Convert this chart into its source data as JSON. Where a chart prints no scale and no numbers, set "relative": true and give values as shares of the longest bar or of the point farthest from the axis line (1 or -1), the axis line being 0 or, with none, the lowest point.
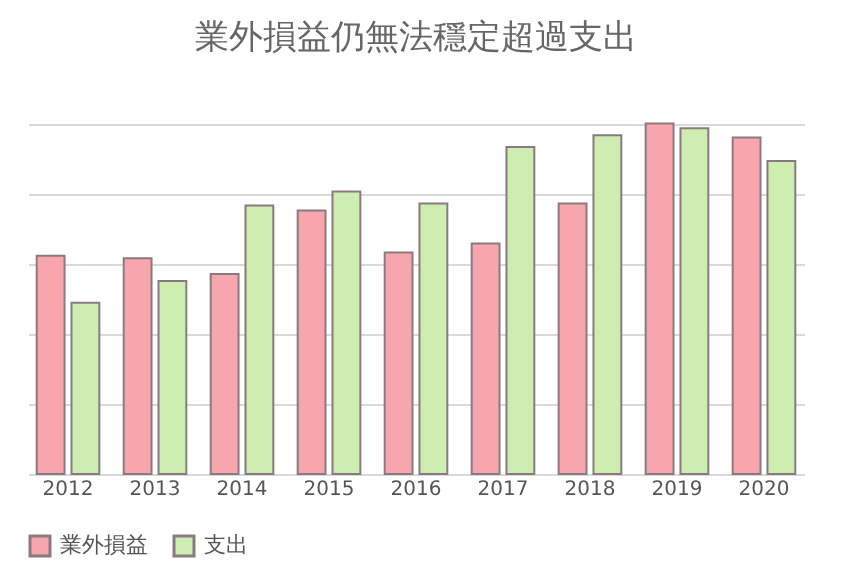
{
  "chart_data": {
    "type": "bar",
    "title": "業外損益仍無法穩定超過支出",
    "relative": true,
    "grid": "y",
    "legend": "bottom",
    "categories": [
      "2012",
      "2013",
      "2014",
      "2015",
      "2016",
      "2017",
      "2018",
      "2019",
      "2020"
    ],
    "series": [
      {
        "name": "業外損益",
        "color": "#f7a6ad",
        "values": [
          0.623,
          0.616,
          0.571,
          0.752,
          0.632,
          0.658,
          0.772,
          1,
          0.96
        ]
      },
      {
        "name": "支出",
        "color": "#cdeeb0",
        "values": [
          0.489,
          0.551,
          0.766,
          0.806,
          0.772,
          0.933,
          0.967,
          0.987,
          0.893
        ]
      }
    ]
  }
}
